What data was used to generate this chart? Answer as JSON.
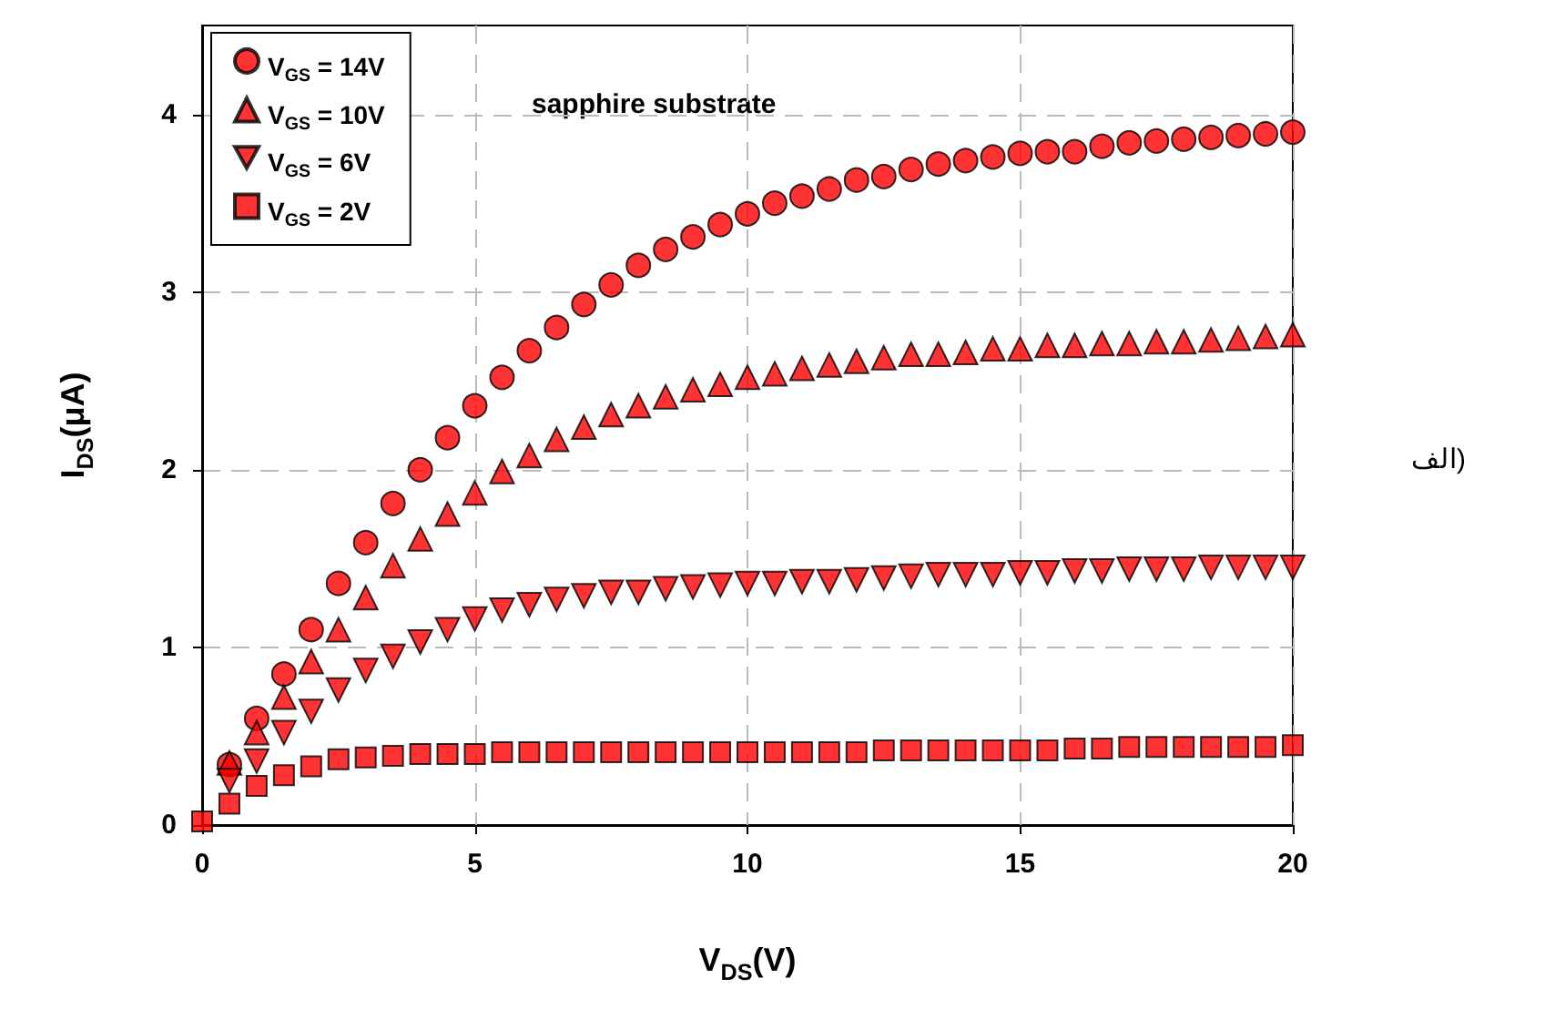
{
  "chart_data": {
    "type": "scatter",
    "xlabel": "V$_{DS}$(V)",
    "ylabel": "I$_{DS}$(μA)",
    "annotations": [
      "sapphire substrate",
      "الف)"
    ],
    "x": [
      0,
      0.5,
      1,
      1.5,
      2,
      2.5,
      3,
      3.5,
      4,
      4.5,
      5,
      5.5,
      6,
      6.5,
      7,
      7.5,
      8,
      8.5,
      9,
      9.5,
      10,
      10.5,
      11,
      11.5,
      12,
      12.5,
      13,
      13.5,
      14,
      14.5,
      15,
      15.5,
      16,
      16.5,
      17,
      17.5,
      18,
      18.5,
      19,
      19.5,
      20
    ],
    "xlim": [
      0,
      20
    ],
    "xticks": [
      0,
      5,
      10,
      15,
      20
    ],
    "ylim": [
      0,
      4.5
    ],
    "yticks": [
      0,
      1,
      2,
      3,
      4
    ],
    "grid": true,
    "legend": "top left",
    "series": [
      {
        "name": "V$_{GS}$ = 14V",
        "color": "#ff0000",
        "marker": "circle",
        "values": [
          null,
          0.34,
          0.6,
          0.85,
          1.1,
          1.36,
          1.59,
          1.81,
          2.0,
          2.18,
          2.36,
          2.52,
          2.67,
          2.8,
          2.93,
          3.04,
          3.15,
          3.24,
          3.31,
          3.38,
          3.44,
          3.5,
          3.54,
          3.58,
          3.63,
          3.65,
          3.69,
          3.72,
          3.74,
          3.76,
          3.78,
          3.79,
          3.79,
          3.82,
          3.84,
          3.85,
          3.86,
          3.87,
          3.88,
          3.89,
          3.9
        ]
      },
      {
        "name": "V$_{GS}$ = 10V",
        "color": "#ff0000",
        "marker": "triangle",
        "values": [
          null,
          0.35,
          0.52,
          0.72,
          0.92,
          1.1,
          1.28,
          1.46,
          1.61,
          1.75,
          1.87,
          1.99,
          2.08,
          2.17,
          2.24,
          2.31,
          2.36,
          2.41,
          2.45,
          2.48,
          2.52,
          2.54,
          2.57,
          2.59,
          2.61,
          2.63,
          2.65,
          2.65,
          2.66,
          2.68,
          2.68,
          2.7,
          2.7,
          2.71,
          2.71,
          2.72,
          2.72,
          2.73,
          2.74,
          2.75,
          2.76
        ]
      },
      {
        "name": "V$_{GS}$ = 6V",
        "color": "#ff0000",
        "marker": "triangle-down",
        "values": [
          null,
          0.25,
          0.36,
          0.52,
          0.64,
          0.76,
          0.87,
          0.95,
          1.03,
          1.1,
          1.16,
          1.21,
          1.24,
          1.27,
          1.29,
          1.31,
          1.31,
          1.33,
          1.34,
          1.35,
          1.36,
          1.36,
          1.37,
          1.37,
          1.38,
          1.39,
          1.4,
          1.41,
          1.41,
          1.41,
          1.42,
          1.42,
          1.43,
          1.43,
          1.44,
          1.44,
          1.44,
          1.45,
          1.45,
          1.45,
          1.45
        ]
      },
      {
        "name": "V$_{GS}$ = 2V",
        "color": "#ff0000",
        "marker": "square",
        "values": [
          0.02,
          0.12,
          0.22,
          0.28,
          0.33,
          0.37,
          0.38,
          0.39,
          0.4,
          0.4,
          0.4,
          0.41,
          0.41,
          0.41,
          0.41,
          0.41,
          0.41,
          0.41,
          0.41,
          0.41,
          0.41,
          0.41,
          0.41,
          0.41,
          0.41,
          0.42,
          0.42,
          0.42,
          0.42,
          0.42,
          0.42,
          0.42,
          0.43,
          0.43,
          0.44,
          0.44,
          0.44,
          0.44,
          0.44,
          0.44,
          0.45
        ]
      }
    ]
  }
}
